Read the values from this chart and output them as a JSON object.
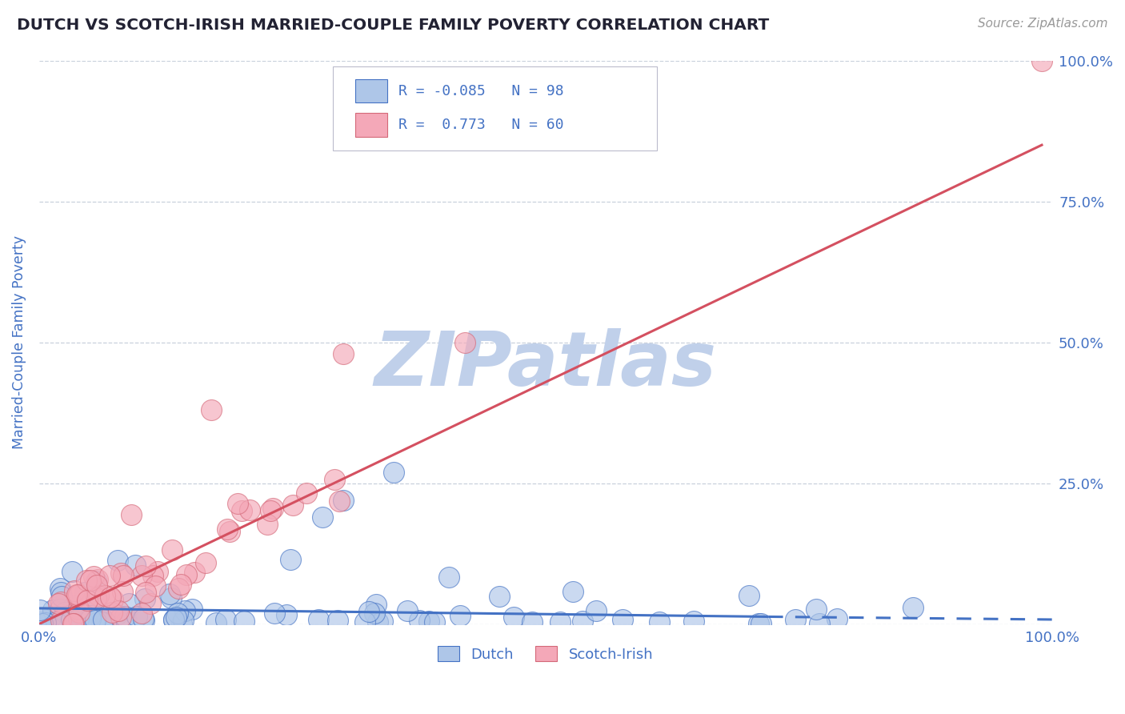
{
  "title": "DUTCH VS SCOTCH-IRISH MARRIED-COUPLE FAMILY POVERTY CORRELATION CHART",
  "source_text": "Source: ZipAtlas.com",
  "ylabel": "Married-Couple Family Poverty",
  "xlim": [
    0,
    1
  ],
  "ylim": [
    0,
    1
  ],
  "xtick_positions": [
    0.0,
    0.25,
    0.5,
    0.75,
    1.0
  ],
  "xticklabels": [
    "0.0%",
    "",
    "",
    "",
    "100.0%"
  ],
  "ytick_positions": [
    0.0,
    0.25,
    0.5,
    0.75,
    1.0
  ],
  "yticklabels_right": [
    "",
    "25.0%",
    "50.0%",
    "75.0%",
    "100.0%"
  ],
  "dutch_color": "#aec6e8",
  "dutch_edge_color": "#4472c4",
  "scotch_color": "#f4a8b8",
  "scotch_edge_color": "#d46878",
  "dutch_line_color": "#4472c4",
  "scotch_line_color": "#d45060",
  "dutch_R": -0.085,
  "dutch_N": 98,
  "scotch_R": 0.773,
  "scotch_N": 60,
  "legend_dutch_label": "Dutch",
  "legend_scotch_label": "Scotch-Irish",
  "watermark": "ZIPatlas",
  "watermark_color_ZIP": "#c0d0ea",
  "watermark_color_atlas": "#c8c0d8",
  "title_color": "#222233",
  "axis_label_color": "#4472c4",
  "tick_color": "#4472c4",
  "grid_color": "#c8d0dc",
  "background_color": "#ffffff",
  "dutch_line_start_x": 0.0,
  "dutch_line_start_y": 0.028,
  "dutch_line_end_solid_x": 0.72,
  "dutch_line_end_solid_y": 0.013,
  "dutch_line_end_dash_x": 1.0,
  "dutch_line_end_dash_y": 0.008,
  "scotch_line_start_x": 0.0,
  "scotch_line_start_y": 0.0,
  "scotch_line_end_x": 0.99,
  "scotch_line_end_y": 0.85
}
